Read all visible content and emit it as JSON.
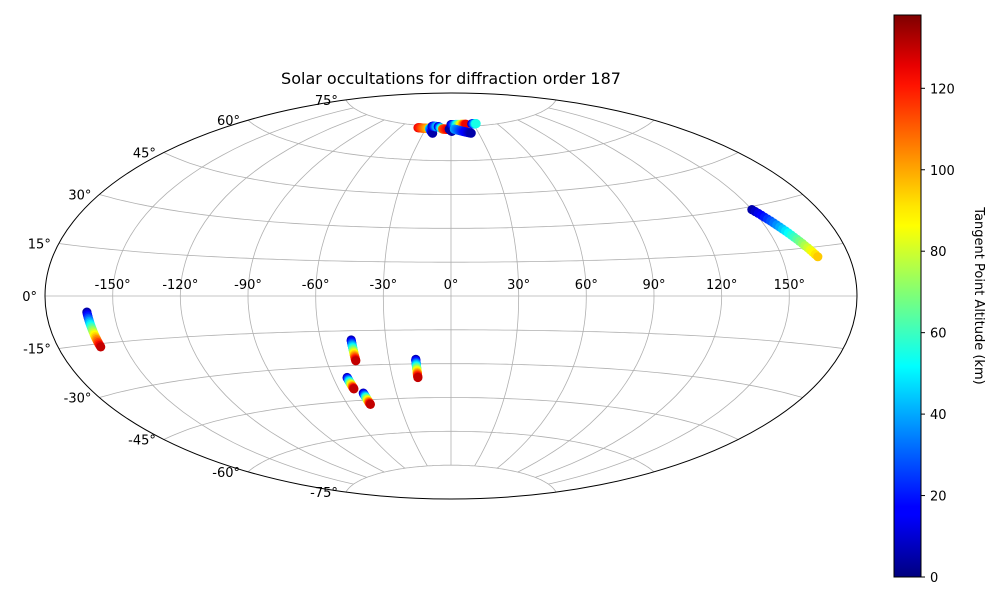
{
  "chart_data": {
    "type": "scatter",
    "projection": "aitoff",
    "title": "Solar occultations for diffraction order 187",
    "grid": true,
    "x_ticks": [
      "-150°",
      "-120°",
      "-90°",
      "-60°",
      "-30°",
      "0°",
      "30°",
      "60°",
      "90°",
      "120°",
      "150°"
    ],
    "y_ticks": [
      "-75°",
      "-60°",
      "-45°",
      "-30°",
      "-15°",
      "0°",
      "15°",
      "30°",
      "45°",
      "60°",
      "75°"
    ],
    "colorbar": {
      "label": "Tangent Point Altitude (km)",
      "colormap": "jet",
      "range": [
        0,
        138
      ],
      "ticks": [
        "0",
        "20",
        "40",
        "60",
        "80",
        "100",
        "120"
      ]
    },
    "tracks": [
      {
        "lon_start": 150,
        "lat_start": 29,
        "lon_end": 166,
        "lat_end": 12,
        "alt_start": 5,
        "alt_end": 95
      },
      {
        "lon_start": -162,
        "lat_start": -5,
        "lon_end": -161,
        "lat_end": -16,
        "alt_start": 5,
        "alt_end": 130
      },
      {
        "lon_start": -46,
        "lat_start": -19,
        "lon_end": -46,
        "lat_end": -28,
        "alt_start": 5,
        "alt_end": 130
      },
      {
        "lon_start": -17,
        "lat_start": -28,
        "lon_end": -17,
        "lat_end": -36,
        "alt_start": 5,
        "alt_end": 130
      },
      {
        "lon_start": -53,
        "lat_start": -35,
        "lon_end": -52,
        "lat_end": -40,
        "alt_start": 5,
        "alt_end": 130
      },
      {
        "lon_start": -48,
        "lat_start": -42,
        "lon_end": -47,
        "lat_end": -47,
        "alt_start": 5,
        "alt_end": 130
      },
      {
        "lon_start": -40,
        "lat_start": 74,
        "lon_end": -26,
        "lat_end": 74,
        "alt_start": 125,
        "alt_end": 95
      },
      {
        "lon_start": -26,
        "lat_start": 74,
        "lon_end": -20,
        "lat_end": 72,
        "alt_start": 50,
        "alt_end": 5
      },
      {
        "lon_start": -24,
        "lat_start": 75,
        "lon_end": -18,
        "lat_end": 75,
        "alt_start": 5,
        "alt_end": 40
      },
      {
        "lon_start": -16,
        "lat_start": 75,
        "lon_end": -10,
        "lat_end": 74,
        "alt_start": 5,
        "alt_end": 70
      },
      {
        "lon_start": -10,
        "lat_start": 74,
        "lon_end": -3,
        "lat_end": 74,
        "alt_start": 110,
        "alt_end": 125
      },
      {
        "lon_start": -2,
        "lat_start": 74,
        "lon_end": 1,
        "lat_end": 73,
        "alt_start": 5,
        "alt_end": 5
      },
      {
        "lon_start": 0,
        "lat_start": 76,
        "lon_end": 20,
        "lat_end": 76,
        "alt_start": 5,
        "alt_end": 125
      },
      {
        "lon_start": 4,
        "lat_start": 74,
        "lon_end": 22,
        "lat_end": 72,
        "alt_start": 40,
        "alt_end": 5
      },
      {
        "lon_start": 28,
        "lat_start": 76,
        "lon_end": 34,
        "lat_end": 76,
        "alt_start": 5,
        "alt_end": 55
      }
    ]
  }
}
